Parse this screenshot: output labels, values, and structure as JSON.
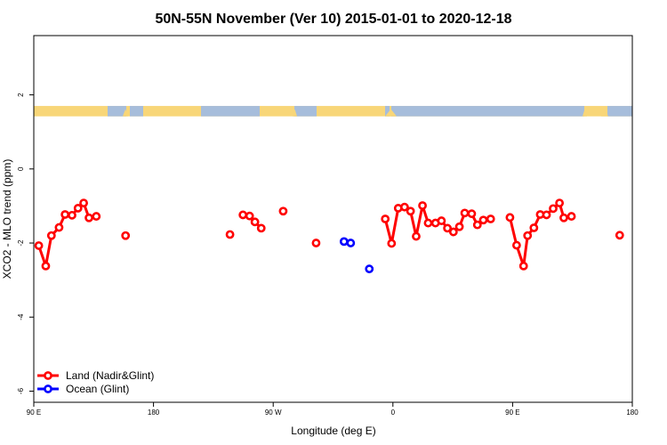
{
  "chart_data": {
    "type": "line",
    "title": "50N-55N November (Ver 10)   2015-01-01 to 2020-12-18",
    "xlabel": "Longitude (deg E)",
    "ylabel": "XCO2 - MLO trend (ppm)",
    "xlim": [
      90,
      270
    ],
    "ylim": [
      -6.3,
      3.6
    ],
    "x_ticks": [
      {
        "value": 90,
        "label": "90 E"
      },
      {
        "value": 126,
        "label": "180"
      },
      {
        "value": 162,
        "label": "90 W"
      },
      {
        "value": 198,
        "label": "0"
      },
      {
        "value": 234,
        "label": "90 E"
      },
      {
        "value": 270,
        "label": "180"
      }
    ],
    "y_ticks": [
      {
        "value": 2,
        "label": "2"
      },
      {
        "value": 0,
        "label": "0"
      },
      {
        "value": -2,
        "label": "-2"
      },
      {
        "value": -4,
        "label": "-4"
      },
      {
        "value": -6,
        "label": "-6"
      }
    ],
    "map_strip": {
      "y_top": 1.7,
      "y_bottom": 1.42,
      "land_color": "#F8D678",
      "ocean_color": "#A6BDDB"
    },
    "legend_position": "bottom-left",
    "grid": false,
    "series": [
      {
        "name": "Land (Nadir&Glint)",
        "color": "#FF0000",
        "points": [
          [
            91.5,
            -2.07
          ],
          [
            93.6,
            -2.62
          ],
          [
            95.3,
            -1.8
          ],
          [
            97.6,
            -1.58
          ],
          [
            99.4,
            -1.23
          ],
          [
            101.5,
            -1.25
          ],
          [
            103.3,
            -1.06
          ],
          [
            105,
            -0.92
          ],
          [
            106.6,
            -1.32
          ],
          [
            108.8,
            -1.28
          ],
          null,
          [
            117.6,
            -1.8
          ],
          null,
          [
            149,
            -1.77
          ],
          null,
          [
            152.9,
            -1.24
          ],
          [
            154.9,
            -1.27
          ],
          [
            156.5,
            -1.43
          ],
          [
            158.4,
            -1.6
          ],
          null,
          [
            165,
            -1.14
          ],
          null,
          [
            174.9,
            -2.0
          ],
          null,
          [
            195.7,
            -1.35
          ],
          [
            197.6,
            -2.01
          ],
          [
            199.6,
            -1.06
          ],
          [
            201.5,
            -1.03
          ],
          [
            203.3,
            -1.14
          ],
          [
            205,
            -1.82
          ],
          [
            206.9,
            -0.99
          ],
          [
            208.6,
            -1.46
          ],
          [
            210.8,
            -1.46
          ],
          [
            212.6,
            -1.4
          ],
          [
            214.4,
            -1.6
          ],
          [
            216.2,
            -1.7
          ],
          [
            218,
            -1.56
          ],
          [
            219.6,
            -1.19
          ],
          [
            221.7,
            -1.21
          ],
          [
            223.4,
            -1.51
          ],
          [
            225.2,
            -1.38
          ],
          [
            227.4,
            -1.35
          ],
          null,
          [
            233.2,
            -1.31
          ],
          [
            235.2,
            -2.06
          ],
          [
            237.3,
            -2.62
          ],
          [
            238.5,
            -1.8
          ],
          [
            240.4,
            -1.59
          ],
          [
            242.3,
            -1.23
          ],
          [
            244.2,
            -1.24
          ],
          [
            246.2,
            -1.07
          ],
          [
            248.1,
            -0.92
          ],
          [
            249.4,
            -1.32
          ],
          [
            251.7,
            -1.28
          ],
          null,
          [
            266.2,
            -1.79
          ]
        ]
      },
      {
        "name": "Ocean (Glint)",
        "color": "#0000FF",
        "points": [
          [
            183.3,
            -1.96
          ],
          [
            185.3,
            -2.0
          ],
          null,
          [
            190.9,
            -2.7
          ]
        ]
      }
    ]
  }
}
